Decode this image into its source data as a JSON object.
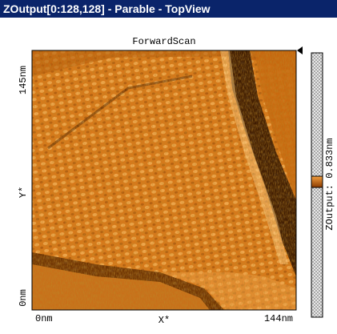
{
  "window": {
    "title": "ZOutput[0:128,128] - Parable - TopView"
  },
  "plot": {
    "title": "ForwardScan",
    "y_axis": {
      "top": "145nm",
      "label": "Y*",
      "bottom": "0nm"
    },
    "x_axis": {
      "left": "0nm",
      "label": "X*",
      "right": "144nm"
    },
    "colorbar": {
      "label": "ZOutput: 0.833nm"
    }
  }
}
